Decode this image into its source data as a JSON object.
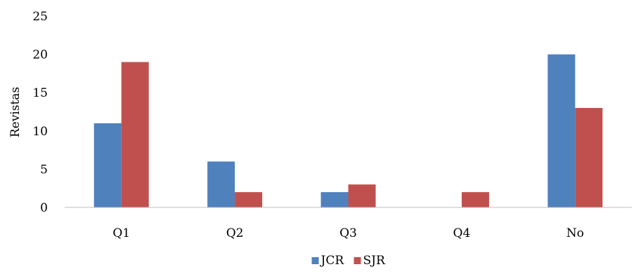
{
  "chart_data": {
    "type": "bar",
    "title": "",
    "xlabel": "",
    "ylabel": "Revistas",
    "categories": [
      "Q1",
      "Q2",
      "Q3",
      "Q4",
      "No"
    ],
    "series": [
      {
        "name": "JCR",
        "color": "#4f81bd",
        "values": [
          11,
          6,
          2,
          0,
          20
        ]
      },
      {
        "name": "SJR",
        "color": "#c0504d",
        "values": [
          19,
          2,
          3,
          2,
          13
        ]
      }
    ],
    "ylim": [
      0,
      25
    ],
    "yticks": [
      "0",
      "5",
      "10",
      "15",
      "20",
      "25"
    ],
    "grid": false,
    "legend": "bottom-center"
  }
}
